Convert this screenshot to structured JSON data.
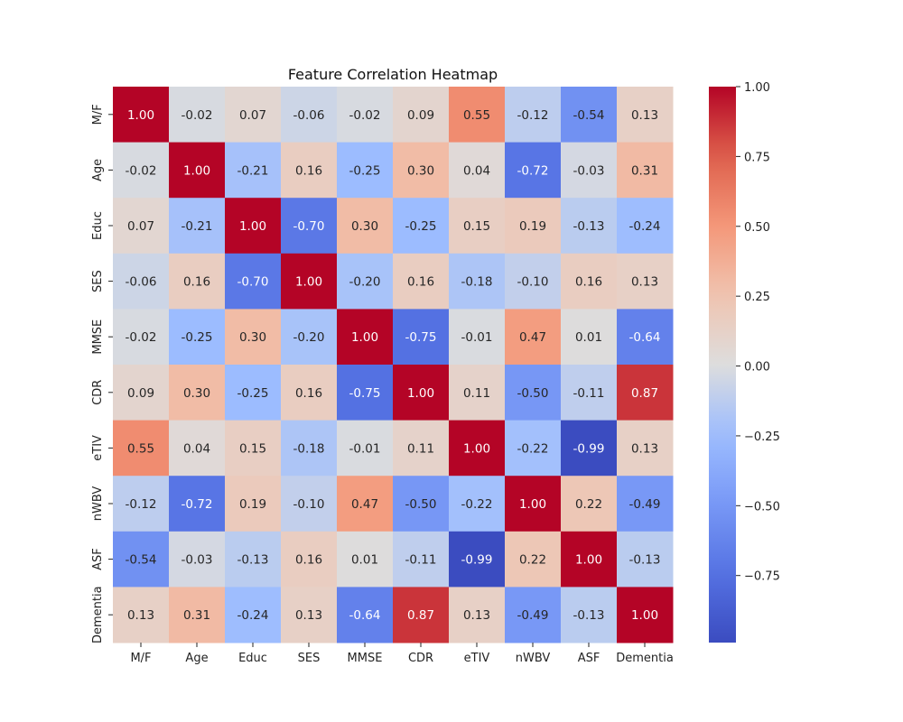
{
  "chart_data": {
    "type": "heatmap",
    "title": "Feature Correlation Heatmap",
    "xlabel": "",
    "ylabel": "",
    "colormap": "coolwarm",
    "value_range": [
      -0.99,
      1.0
    ],
    "x_labels": [
      "M/F",
      "Age",
      "Educ",
      "SES",
      "MMSE",
      "CDR",
      "eTIV",
      "nWBV",
      "ASF",
      "Dementia"
    ],
    "y_labels": [
      "M/F",
      "Age",
      "Educ",
      "SES",
      "MMSE",
      "CDR",
      "eTIV",
      "nWBV",
      "ASF",
      "Dementia"
    ],
    "values": [
      [
        1.0,
        -0.02,
        0.07,
        -0.06,
        -0.02,
        0.09,
        0.55,
        -0.12,
        -0.54,
        0.13
      ],
      [
        -0.02,
        1.0,
        -0.21,
        0.16,
        -0.25,
        0.3,
        0.04,
        -0.72,
        -0.03,
        0.31
      ],
      [
        0.07,
        -0.21,
        1.0,
        -0.7,
        0.3,
        -0.25,
        0.15,
        0.19,
        -0.13,
        -0.24
      ],
      [
        -0.06,
        0.16,
        -0.7,
        1.0,
        -0.2,
        0.16,
        -0.18,
        -0.1,
        0.16,
        0.13
      ],
      [
        -0.02,
        -0.25,
        0.3,
        -0.2,
        1.0,
        -0.75,
        -0.01,
        0.47,
        0.01,
        -0.64
      ],
      [
        0.09,
        0.3,
        -0.25,
        0.16,
        -0.75,
        1.0,
        0.11,
        -0.5,
        -0.11,
        0.87
      ],
      [
        0.55,
        0.04,
        0.15,
        -0.18,
        -0.01,
        0.11,
        1.0,
        -0.22,
        -0.99,
        0.13
      ],
      [
        -0.12,
        -0.72,
        0.19,
        -0.1,
        0.47,
        -0.5,
        -0.22,
        1.0,
        0.22,
        -0.49
      ],
      [
        -0.54,
        -0.03,
        -0.13,
        0.16,
        0.01,
        -0.11,
        -0.99,
        0.22,
        1.0,
        -0.13
      ],
      [
        0.13,
        0.31,
        -0.24,
        0.13,
        -0.64,
        0.87,
        0.13,
        -0.49,
        -0.13,
        1.0
      ]
    ],
    "annotation_format": "0.00",
    "colorbar": {
      "ticks": [
        1.0,
        0.75,
        0.5,
        0.25,
        0.0,
        -0.25,
        -0.5,
        -0.75
      ],
      "tick_labels": [
        "1.00",
        "0.75",
        "0.50",
        "0.25",
        "0.00",
        "−0.25",
        "−0.50",
        "−0.75"
      ]
    },
    "grid": false,
    "legend": "colorbar-right"
  }
}
